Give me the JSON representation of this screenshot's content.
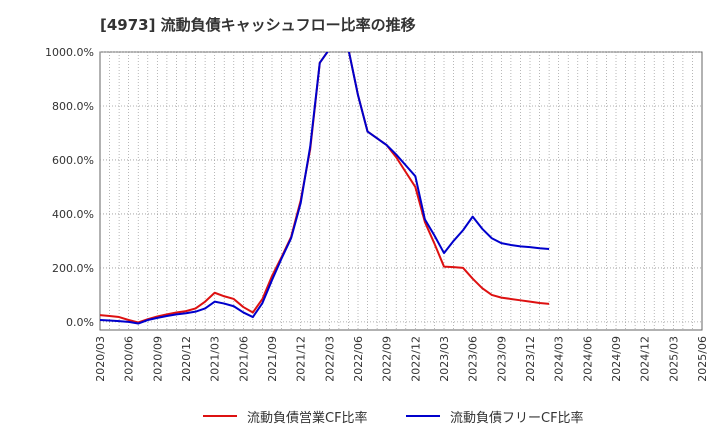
{
  "chart_data": {
    "type": "line",
    "title": "[4973]  流動負債キャッシュフロー比率の推移",
    "xlabel": "",
    "ylabel": "",
    "ylim": [
      -30,
      1000
    ],
    "yticks": [
      0,
      200,
      400,
      600,
      800,
      1000
    ],
    "ytick_labels": [
      "0.0%",
      "200.0%",
      "400.0%",
      "600.0%",
      "800.0%",
      "1000.0%"
    ],
    "xtick_labels": [
      "2020/03",
      "2020/06",
      "2020/09",
      "2020/12",
      "2021/03",
      "2021/06",
      "2021/09",
      "2021/12",
      "2022/03",
      "2022/06",
      "2022/09",
      "2022/12",
      "2023/03",
      "2023/06",
      "2023/09",
      "2023/12",
      "2024/03",
      "2024/06",
      "2024/09",
      "2024/12",
      "2025/03",
      "2025/06"
    ],
    "x_start_month": "2020/03",
    "grid": true,
    "legend_position": "bottom",
    "series": [
      {
        "name": "流動負債営業CF比率",
        "color": "#dd1111",
        "values": [
          25,
          22,
          18,
          7,
          -2,
          10,
          20,
          28,
          35,
          40,
          50,
          75,
          108,
          95,
          85,
          55,
          35,
          85,
          170,
          240,
          315,
          450,
          640,
          960,
          1010,
          1010,
          1010,
          840,
          705,
          680,
          655,
          610,
          555,
          500,
          370,
          290,
          205,
          203,
          200,
          160,
          125,
          100,
          90,
          85,
          80,
          75,
          70,
          67
        ]
      },
      {
        "name": "流動負債フリーCF比率",
        "color": "#0000cc",
        "values": [
          7,
          5,
          3,
          0,
          -6,
          7,
          15,
          22,
          28,
          32,
          38,
          50,
          75,
          68,
          58,
          35,
          18,
          70,
          155,
          235,
          310,
          440,
          650,
          960,
          1010,
          1010,
          1010,
          840,
          705,
          680,
          655,
          620,
          580,
          540,
          380,
          320,
          255,
          300,
          340,
          390,
          345,
          310,
          292,
          285,
          280,
          277,
          273,
          270
        ]
      }
    ]
  }
}
